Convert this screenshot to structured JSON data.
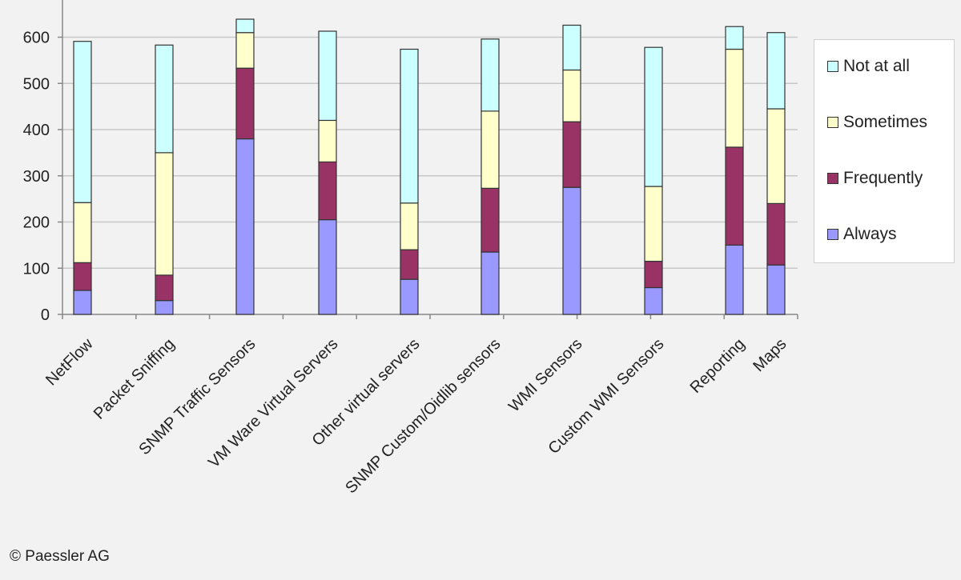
{
  "chart_data": {
    "type": "bar",
    "stacked": true,
    "categories": [
      "NetFlow",
      "Packet Sniffing",
      "SNMP Traffic Sensors",
      "VM Ware Virtual Servers",
      "Other virtual servers",
      "SNMP Custom/Oidlib sensors",
      "WMI Sensors",
      "Custom WMI Sensors",
      "Reporting",
      "Maps"
    ],
    "series": [
      {
        "name": "Always",
        "color": "#9999ff",
        "values": [
          52,
          30,
          380,
          205,
          76,
          135,
          275,
          58,
          150,
          107
        ]
      },
      {
        "name": "Frequently",
        "color": "#993366",
        "values": [
          60,
          55,
          153,
          125,
          64,
          138,
          142,
          57,
          212,
          133
        ]
      },
      {
        "name": "Sometimes",
        "color": "#ffffcc",
        "values": [
          130,
          265,
          77,
          90,
          101,
          167,
          112,
          162,
          212,
          205
        ]
      },
      {
        "name": "Not at all",
        "color": "#ccffff",
        "values": [
          349,
          233,
          29,
          193,
          333,
          156,
          97,
          301,
          49,
          165
        ]
      }
    ],
    "legend_order": [
      "Not at all",
      "Sometimes",
      "Frequently",
      "Always"
    ],
    "legend_position": "right",
    "ylim": [
      0,
      700
    ],
    "yticks": [
      "0",
      "100",
      "200",
      "300",
      "400",
      "500",
      "600",
      "700"
    ],
    "grid": true,
    "title": "",
    "xlabel": "",
    "ylabel": ""
  },
  "footer": {
    "copyright": "© Paessler AG"
  }
}
